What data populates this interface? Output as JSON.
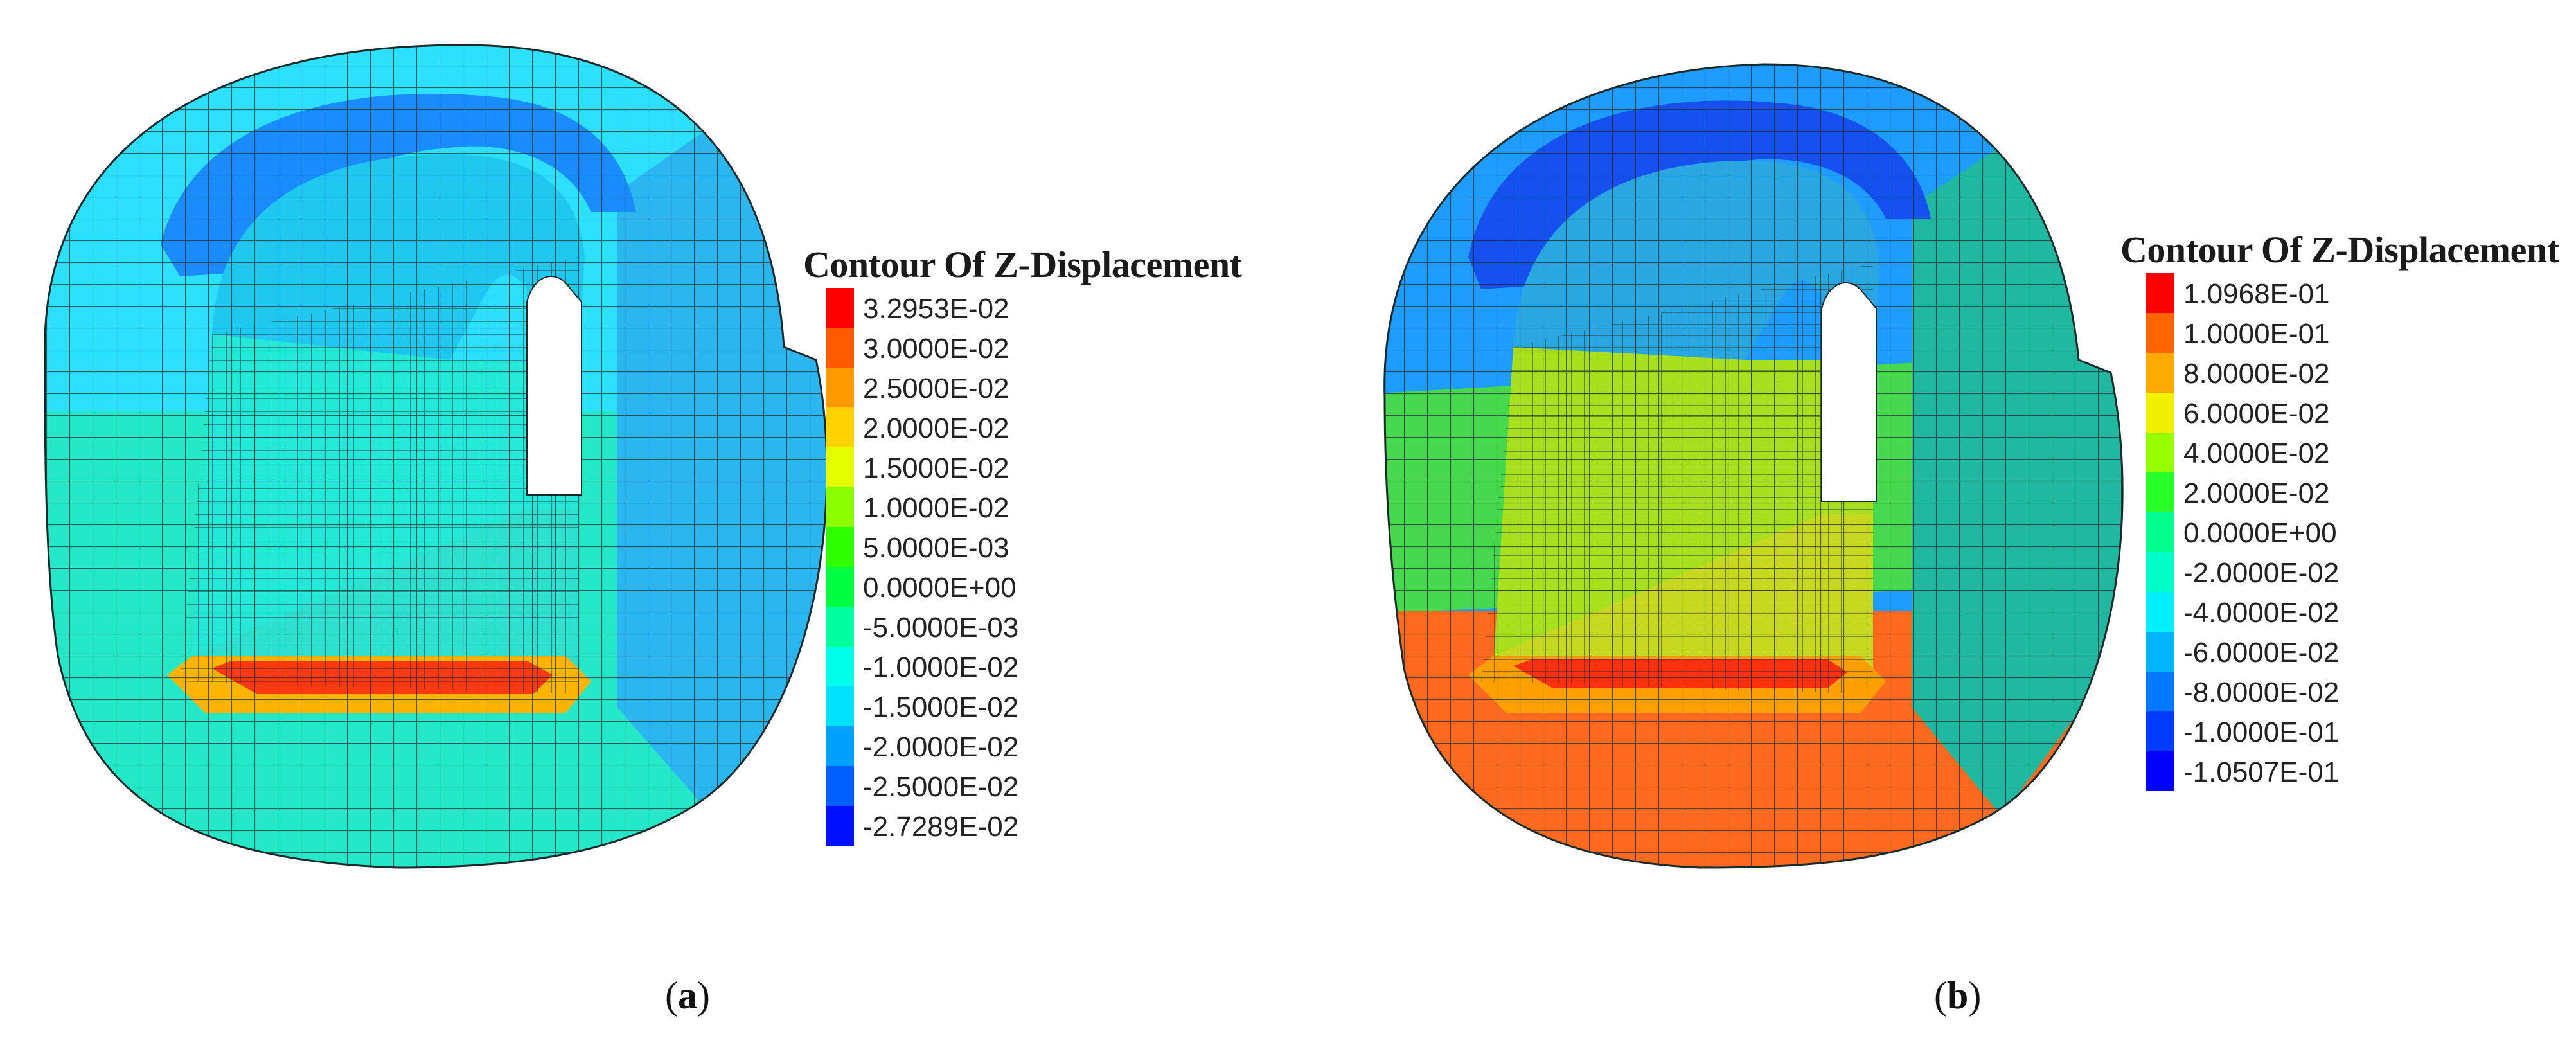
{
  "panels": [
    {
      "id": "a",
      "caption_letter": "a",
      "legend": {
        "title": "Contour Of Z-Displacement",
        "entries": [
          {
            "label": "3.2953E-02",
            "color": "#ff0000"
          },
          {
            "label": "3.0000E-02",
            "color": "#ff5a00"
          },
          {
            "label": "2.5000E-02",
            "color": "#ff9a00"
          },
          {
            "label": "2.0000E-02",
            "color": "#ffd200"
          },
          {
            "label": "1.5000E-02",
            "color": "#e6ff00"
          },
          {
            "label": "1.0000E-02",
            "color": "#8cff00"
          },
          {
            "label": "5.0000E-03",
            "color": "#30ff00"
          },
          {
            "label": "0.0000E+00",
            "color": "#00ff40"
          },
          {
            "label": "-5.0000E-03",
            "color": "#00ffa0"
          },
          {
            "label": "-1.0000E-02",
            "color": "#00ffe6"
          },
          {
            "label": "-1.5000E-02",
            "color": "#00e0ff"
          },
          {
            "label": "-2.0000E-02",
            "color": "#00a0ff"
          },
          {
            "label": "-2.5000E-02",
            "color": "#0060ff"
          },
          {
            "label": "-2.7289E-02",
            "color": "#0010ff"
          }
        ]
      },
      "colors": {
        "outer_ring": "#2ee0ff",
        "crown_band": "#1a8cff",
        "right_wall": "#2bb6f0",
        "lower_ring": "#24e8c8",
        "inner_upper": "#20c8f0",
        "inner_lower": "#24e8d8",
        "floor": "#2ee0d0",
        "invert_strip": "#ff3a10",
        "invert_halo": "#ffb400"
      }
    },
    {
      "id": "b",
      "caption_letter": "b",
      "legend": {
        "title": "Contour Of Z-Displacement",
        "entries": [
          {
            "label": "1.0968E-01",
            "color": "#ff0000"
          },
          {
            "label": "1.0000E-01",
            "color": "#ff6400"
          },
          {
            "label": "8.0000E-02",
            "color": "#ffaa00"
          },
          {
            "label": "6.0000E-02",
            "color": "#f0f000"
          },
          {
            "label": "4.0000E-02",
            "color": "#96ff00"
          },
          {
            "label": "2.0000E-02",
            "color": "#28ff28"
          },
          {
            "label": "0.0000E+00",
            "color": "#00ff8c"
          },
          {
            "label": "-2.0000E-02",
            "color": "#00ffc8"
          },
          {
            "label": "-4.0000E-02",
            "color": "#00f0ff"
          },
          {
            "label": "-6.0000E-02",
            "color": "#00b4ff"
          },
          {
            "label": "-8.0000E-02",
            "color": "#0078ff"
          },
          {
            "label": "-1.0000E-01",
            "color": "#003cff"
          },
          {
            "label": "-1.0507E-01",
            "color": "#0000ff"
          }
        ]
      },
      "colors": {
        "outer_ring": "#1e9cff",
        "crown_band": "#1650ee",
        "right_wall": "#20b8a0",
        "lower_ring": "#ff6a20",
        "inner_upper": "#2aa6e0",
        "inner_lower": "#a8e020",
        "floor": "#c8d820",
        "invert_strip": "#ff3010",
        "invert_halo": "#ffa000"
      }
    }
  ]
}
